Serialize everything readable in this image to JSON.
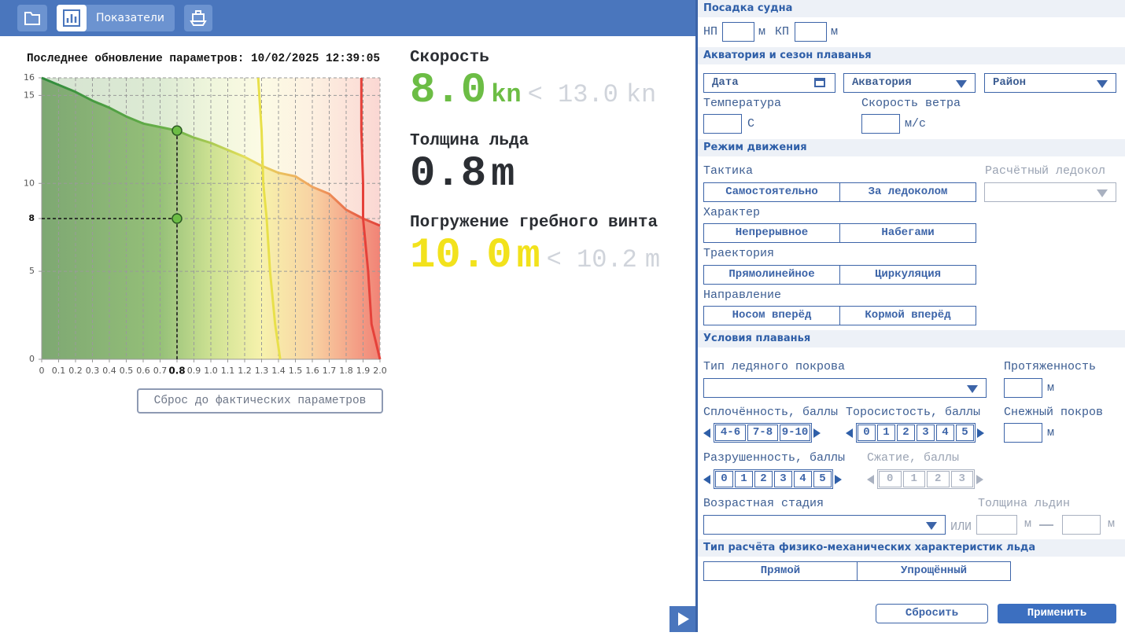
{
  "toolbar": {
    "tab": "Показатели"
  },
  "info": {
    "updated": "Последнее обновление параметров: 10/02/2025 12:39:05",
    "reset": "Сброс до фактических параметров",
    "metrics": [
      {
        "label": "Скорость",
        "value": "8.0",
        "unit": "kn",
        "limit": "< 13.0",
        "limit_unit": "kn",
        "color": "#6cbd45"
      },
      {
        "label": "Толщина льда",
        "value": "0.8",
        "unit": "m",
        "color": "#2b2e33"
      },
      {
        "label": "Погружение гребного винта",
        "value": "10.0",
        "unit": "m",
        "limit": "< 10.2",
        "limit_unit": "m",
        "color": "#f2e21c"
      }
    ]
  },
  "chart_data": {
    "type": "line",
    "x": [
      0,
      0.1,
      0.2,
      0.3,
      0.4,
      0.5,
      0.6,
      0.7,
      0.8,
      0.9,
      1.0,
      1.1,
      1.2,
      1.3,
      1.4,
      1.5,
      1.6,
      1.7,
      1.8,
      1.9,
      2.0
    ],
    "series": [
      {
        "values": [
          16,
          15.6,
          15.2,
          14.7,
          14.3,
          13.8,
          13.4,
          13.2,
          13.0,
          12.6,
          12.3,
          11.9,
          11.5,
          11.0,
          10.6,
          10.4,
          9.8,
          9.4,
          8.5,
          8.0,
          7.6
        ]
      },
      {
        "x": [
          1.28,
          1.3,
          1.31,
          1.33,
          1.35,
          1.38,
          1.41
        ],
        "values": [
          16,
          13,
          10,
          8,
          5,
          2,
          0
        ],
        "color": "#e8e04a"
      },
      {
        "x": [
          1.89,
          1.89,
          1.9,
          1.9,
          1.93,
          1.95,
          2.0
        ],
        "values": [
          16,
          13,
          10,
          8,
          5,
          2,
          0
        ],
        "color": "#e5413a"
      }
    ],
    "selected": {
      "x": 0.8,
      "y": 8
    },
    "xlim": [
      0,
      2
    ],
    "ylim": [
      0,
      16
    ],
    "xticks": [
      0,
      0.1,
      0.2,
      0.3,
      0.4,
      0.5,
      0.6,
      0.7,
      0.8,
      0.9,
      {
        "value": 1,
        "label": "1.0"
      },
      1.1,
      1.2,
      1.3,
      1.4,
      1.5,
      1.6,
      1.7,
      1.8,
      1.9,
      {
        "value": 2,
        "label": "2.0"
      }
    ],
    "yticks": [
      0,
      5,
      8,
      10,
      15,
      16
    ],
    "grid": true
  },
  "panel": {
    "draft": {
      "title": "Посадка судна",
      "bow": "НП",
      "stern": "КП",
      "unit": "м"
    },
    "area": {
      "title": "Акватория и сезон плаванья",
      "date": "Дата",
      "water_area": "Акватория",
      "region": "Район",
      "temperature": "Температура",
      "temperature_unit": "С",
      "wind": "Скорость ветра",
      "wind_unit": "м/с"
    },
    "motion": {
      "title": "Режим движения",
      "icebreaker": "Расчётный ледокол",
      "tactics": {
        "label": "Тактика",
        "options": [
          "Самостоятельно",
          "За ледоколом"
        ]
      },
      "character": {
        "label": "Характер",
        "options": [
          "Непрерывное",
          "Набегами"
        ]
      },
      "trajectory": {
        "label": "Траектория",
        "options": [
          "Прямолинейное",
          "Циркуляция"
        ]
      },
      "direction": {
        "label": "Направление",
        "options": [
          "Носом вперёд",
          "Кормой вперёд"
        ]
      }
    },
    "conditions": {
      "title": "Условия плаванья",
      "ice_cover": "Тип ледяного покрова",
      "extent": "Протяженность",
      "unit": "м",
      "snow": "Снежный покров",
      "concentration": {
        "label": "Сплочённость, баллы",
        "options": [
          "4-6",
          "7-8",
          "9-10"
        ]
      },
      "hummocking": {
        "label": "Торосистость, баллы",
        "options": [
          "0",
          "1",
          "2",
          "3",
          "4",
          "5"
        ]
      },
      "destruction": {
        "label": "Разрушенность, баллы",
        "options": [
          "0",
          "1",
          "2",
          "3",
          "4",
          "5"
        ]
      },
      "compression": {
        "label": "Сжатие, баллы",
        "options": [
          "0",
          "1",
          "2",
          "3"
        ]
      },
      "age": "Возрастная стадия",
      "or": "ИЛИ",
      "floe_thickness": "Толщина льдин"
    },
    "calc": {
      "title": "Тип расчёта физико-механических характеристик льда",
      "options": [
        "Прямой",
        "Упрощённый"
      ]
    },
    "actions": {
      "reset": "Сбросить",
      "apply": "Применить"
    }
  }
}
